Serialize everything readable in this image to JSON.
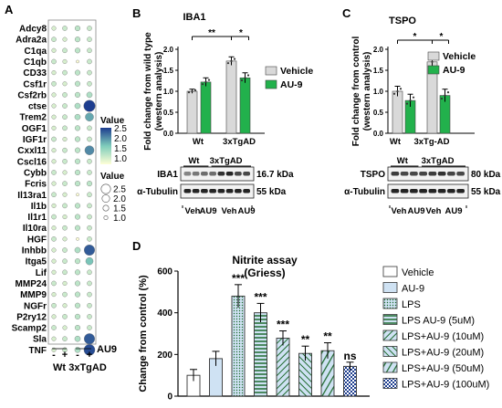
{
  "panels": {
    "A": "A",
    "B": "B",
    "C": "C",
    "D": "D"
  },
  "colors": {
    "vehicle": "#d9d9d9",
    "au9": "#22b14c",
    "lightblue": "#cfe2f3",
    "heat_low": "#ffffd6",
    "heat_mid": "#7fcdbb",
    "heat_high": "#1d3d8f"
  },
  "panelA": {
    "genes": [
      "Adcy8",
      "Adra2a",
      "C1qa",
      "C1qb",
      "CD33",
      "Csf1r",
      "Csf2rb",
      "ctse",
      "Trem2",
      "OGF1",
      "IGF1r",
      "Cxxl11",
      "Cscl16",
      "Cybb",
      "Fcris",
      "Il13ra1",
      "Il1b",
      "Il1r1",
      "Il10ra",
      "HGF",
      "Inhbb",
      "Itga5",
      "Lif",
      "MMP24",
      "MMP9",
      "NGFr",
      "P2ry12",
      "Scamp2",
      "Sla",
      "TNF"
    ],
    "columns": [
      "-",
      "+",
      "-",
      "+"
    ],
    "group_labels": [
      "Wt",
      "3xTgAD"
    ],
    "treatment_label": "AU9",
    "value_legend_title": "Value",
    "value_ticks": [
      "2.5",
      "2.0",
      "1.5",
      "1.0"
    ],
    "size_legend_title": "Value",
    "size_ticks": [
      "2.5",
      "2.0",
      "1.5",
      "1.0"
    ],
    "cells": [
      [
        1.0,
        1.1,
        1.2,
        1.1
      ],
      [
        1.1,
        1.0,
        1.2,
        1.1
      ],
      [
        1.0,
        1.1,
        1.2,
        1.1
      ],
      [
        1.1,
        1.0,
        0.7,
        1.1
      ],
      [
        1.0,
        1.1,
        1.2,
        1.1
      ],
      [
        1.1,
        1.0,
        1.2,
        1.1
      ],
      [
        1.0,
        1.1,
        1.2,
        1.3
      ],
      [
        1.0,
        1.1,
        1.3,
        2.6
      ],
      [
        1.0,
        1.1,
        1.3,
        1.9
      ],
      [
        1.0,
        1.1,
        1.2,
        1.1
      ],
      [
        1.1,
        1.0,
        1.2,
        1.1
      ],
      [
        1.0,
        1.1,
        1.2,
        2.1
      ],
      [
        1.0,
        1.1,
        1.2,
        1.1
      ],
      [
        1.1,
        1.0,
        1.2,
        1.1
      ],
      [
        1.0,
        1.1,
        1.2,
        1.2
      ],
      [
        1.1,
        1.0,
        0.7,
        1.1
      ],
      [
        1.0,
        1.1,
        1.2,
        1.1
      ],
      [
        1.1,
        1.0,
        1.2,
        1.1
      ],
      [
        1.0,
        1.1,
        1.2,
        1.1
      ],
      [
        1.1,
        1.0,
        0.7,
        1.1
      ],
      [
        1.0,
        1.1,
        1.3,
        2.4
      ],
      [
        1.0,
        1.1,
        1.2,
        1.7
      ],
      [
        1.0,
        1.1,
        1.2,
        1.1
      ],
      [
        1.1,
        1.0,
        1.2,
        1.1
      ],
      [
        1.0,
        1.1,
        1.2,
        1.1
      ],
      [
        1.1,
        1.0,
        1.2,
        1.1
      ],
      [
        1.0,
        1.1,
        1.2,
        1.1
      ],
      [
        1.1,
        1.0,
        1.2,
        1.1
      ],
      [
        1.0,
        1.1,
        1.3,
        2.4
      ],
      [
        1.0,
        1.1,
        1.3,
        2.5
      ]
    ]
  },
  "panelB": {
    "title": "IBA1",
    "ylabel": "Fold change from wild type\n(western analysis)",
    "yticks": [
      "0.0",
      "0.5",
      "1.0",
      "1.5",
      "2.0"
    ],
    "groups": [
      "Wt",
      "3xTgAD"
    ],
    "legend": [
      "Vehicle",
      "AU-9"
    ],
    "sig": [
      "**",
      "*"
    ],
    "blot_group_labels": [
      "Wt",
      "3xTgAD"
    ],
    "blot_rows": [
      {
        "label": "IBA1",
        "kda": "16.7 kDa"
      },
      {
        "label": "α-Tubulin",
        "kda": "55 kDa"
      }
    ],
    "lane_labels": [
      "Veh",
      "AU9",
      "Veh",
      "AU9"
    ]
  },
  "panelC": {
    "title": "TSPO",
    "ylabel": "Fold change from control\n(western analysis)",
    "yticks": [
      "0.0",
      "0.5",
      "1.0",
      "1.5",
      "2.0"
    ],
    "groups": [
      "Wt",
      "3xTg-AD"
    ],
    "legend": [
      "Vehicle",
      "AU-9"
    ],
    "sig": [
      "*",
      "*"
    ],
    "blot_group_labels": [
      "Wt",
      "3xTgAD"
    ],
    "blot_rows": [
      {
        "label": "TSPO",
        "kda": "80 kDa"
      },
      {
        "label": "α-Tubulin",
        "kda": "55 kDa"
      }
    ],
    "lane_labels": [
      "Veh",
      "AU9",
      "Veh",
      "AU9"
    ]
  },
  "panelD": {
    "title": "Nitrite assay",
    "subtitle": "(Griess)",
    "ylabel": "Change from control (%)",
    "yticks": [
      "0",
      "200",
      "400",
      "600"
    ],
    "legend": [
      "Vehicle",
      "AU-9",
      "LPS",
      "LPS AU-9 (5uM)",
      "LPS+AU-9 (10uM)",
      "LPS+AU-9 (20uM)",
      "LPS+AU-9 (50uM)",
      "LPS+AU-9 (100uM)"
    ],
    "sig": [
      "",
      "",
      "***",
      "***",
      "***",
      "**",
      "**",
      "ns"
    ]
  },
  "chart_data": [
    {
      "type": "bar",
      "title": "IBA1",
      "ylabel": "Fold change from wild type (western analysis)",
      "categories": [
        "Wt",
        "3xTgAD"
      ],
      "series": [
        {
          "name": "Vehicle",
          "values": [
            1.0,
            1.72
          ]
        },
        {
          "name": "AU-9",
          "values": [
            1.22,
            1.32
          ]
        }
      ],
      "errors": [
        [
          0.05,
          0.1
        ],
        [
          0.1,
          0.12
        ]
      ],
      "ylim": [
        0,
        2.0
      ]
    },
    {
      "type": "bar",
      "title": "TSPO",
      "ylabel": "Fold change from control (western analysis)",
      "categories": [
        "Wt",
        "3xTg-AD"
      ],
      "series": [
        {
          "name": "Vehicle",
          "values": [
            1.0,
            1.7
          ]
        },
        {
          "name": "AU-9",
          "values": [
            0.78,
            0.9
          ]
        }
      ],
      "errors": [
        [
          0.12,
          0.22
        ],
        [
          0.15,
          0.15
        ]
      ],
      "ylim": [
        0,
        2.0
      ]
    },
    {
      "type": "bar",
      "title": "Nitrite assay",
      "subtitle": "(Griess)",
      "ylabel": "Change from control (%)",
      "categories": [
        "Vehicle",
        "AU-9",
        "LPS",
        "LPS AU-9 (5uM)",
        "LPS+AU-9 (10uM)",
        "LPS+AU-9 (20uM)",
        "LPS+AU-9 (50uM)",
        "LPS+AU-9 (100uM)"
      ],
      "values": [
        100,
        180,
        480,
        400,
        278,
        205,
        218,
        143
      ],
      "errors": [
        28,
        35,
        55,
        45,
        35,
        35,
        38,
        20
      ],
      "ylim": [
        0,
        600
      ]
    }
  ]
}
